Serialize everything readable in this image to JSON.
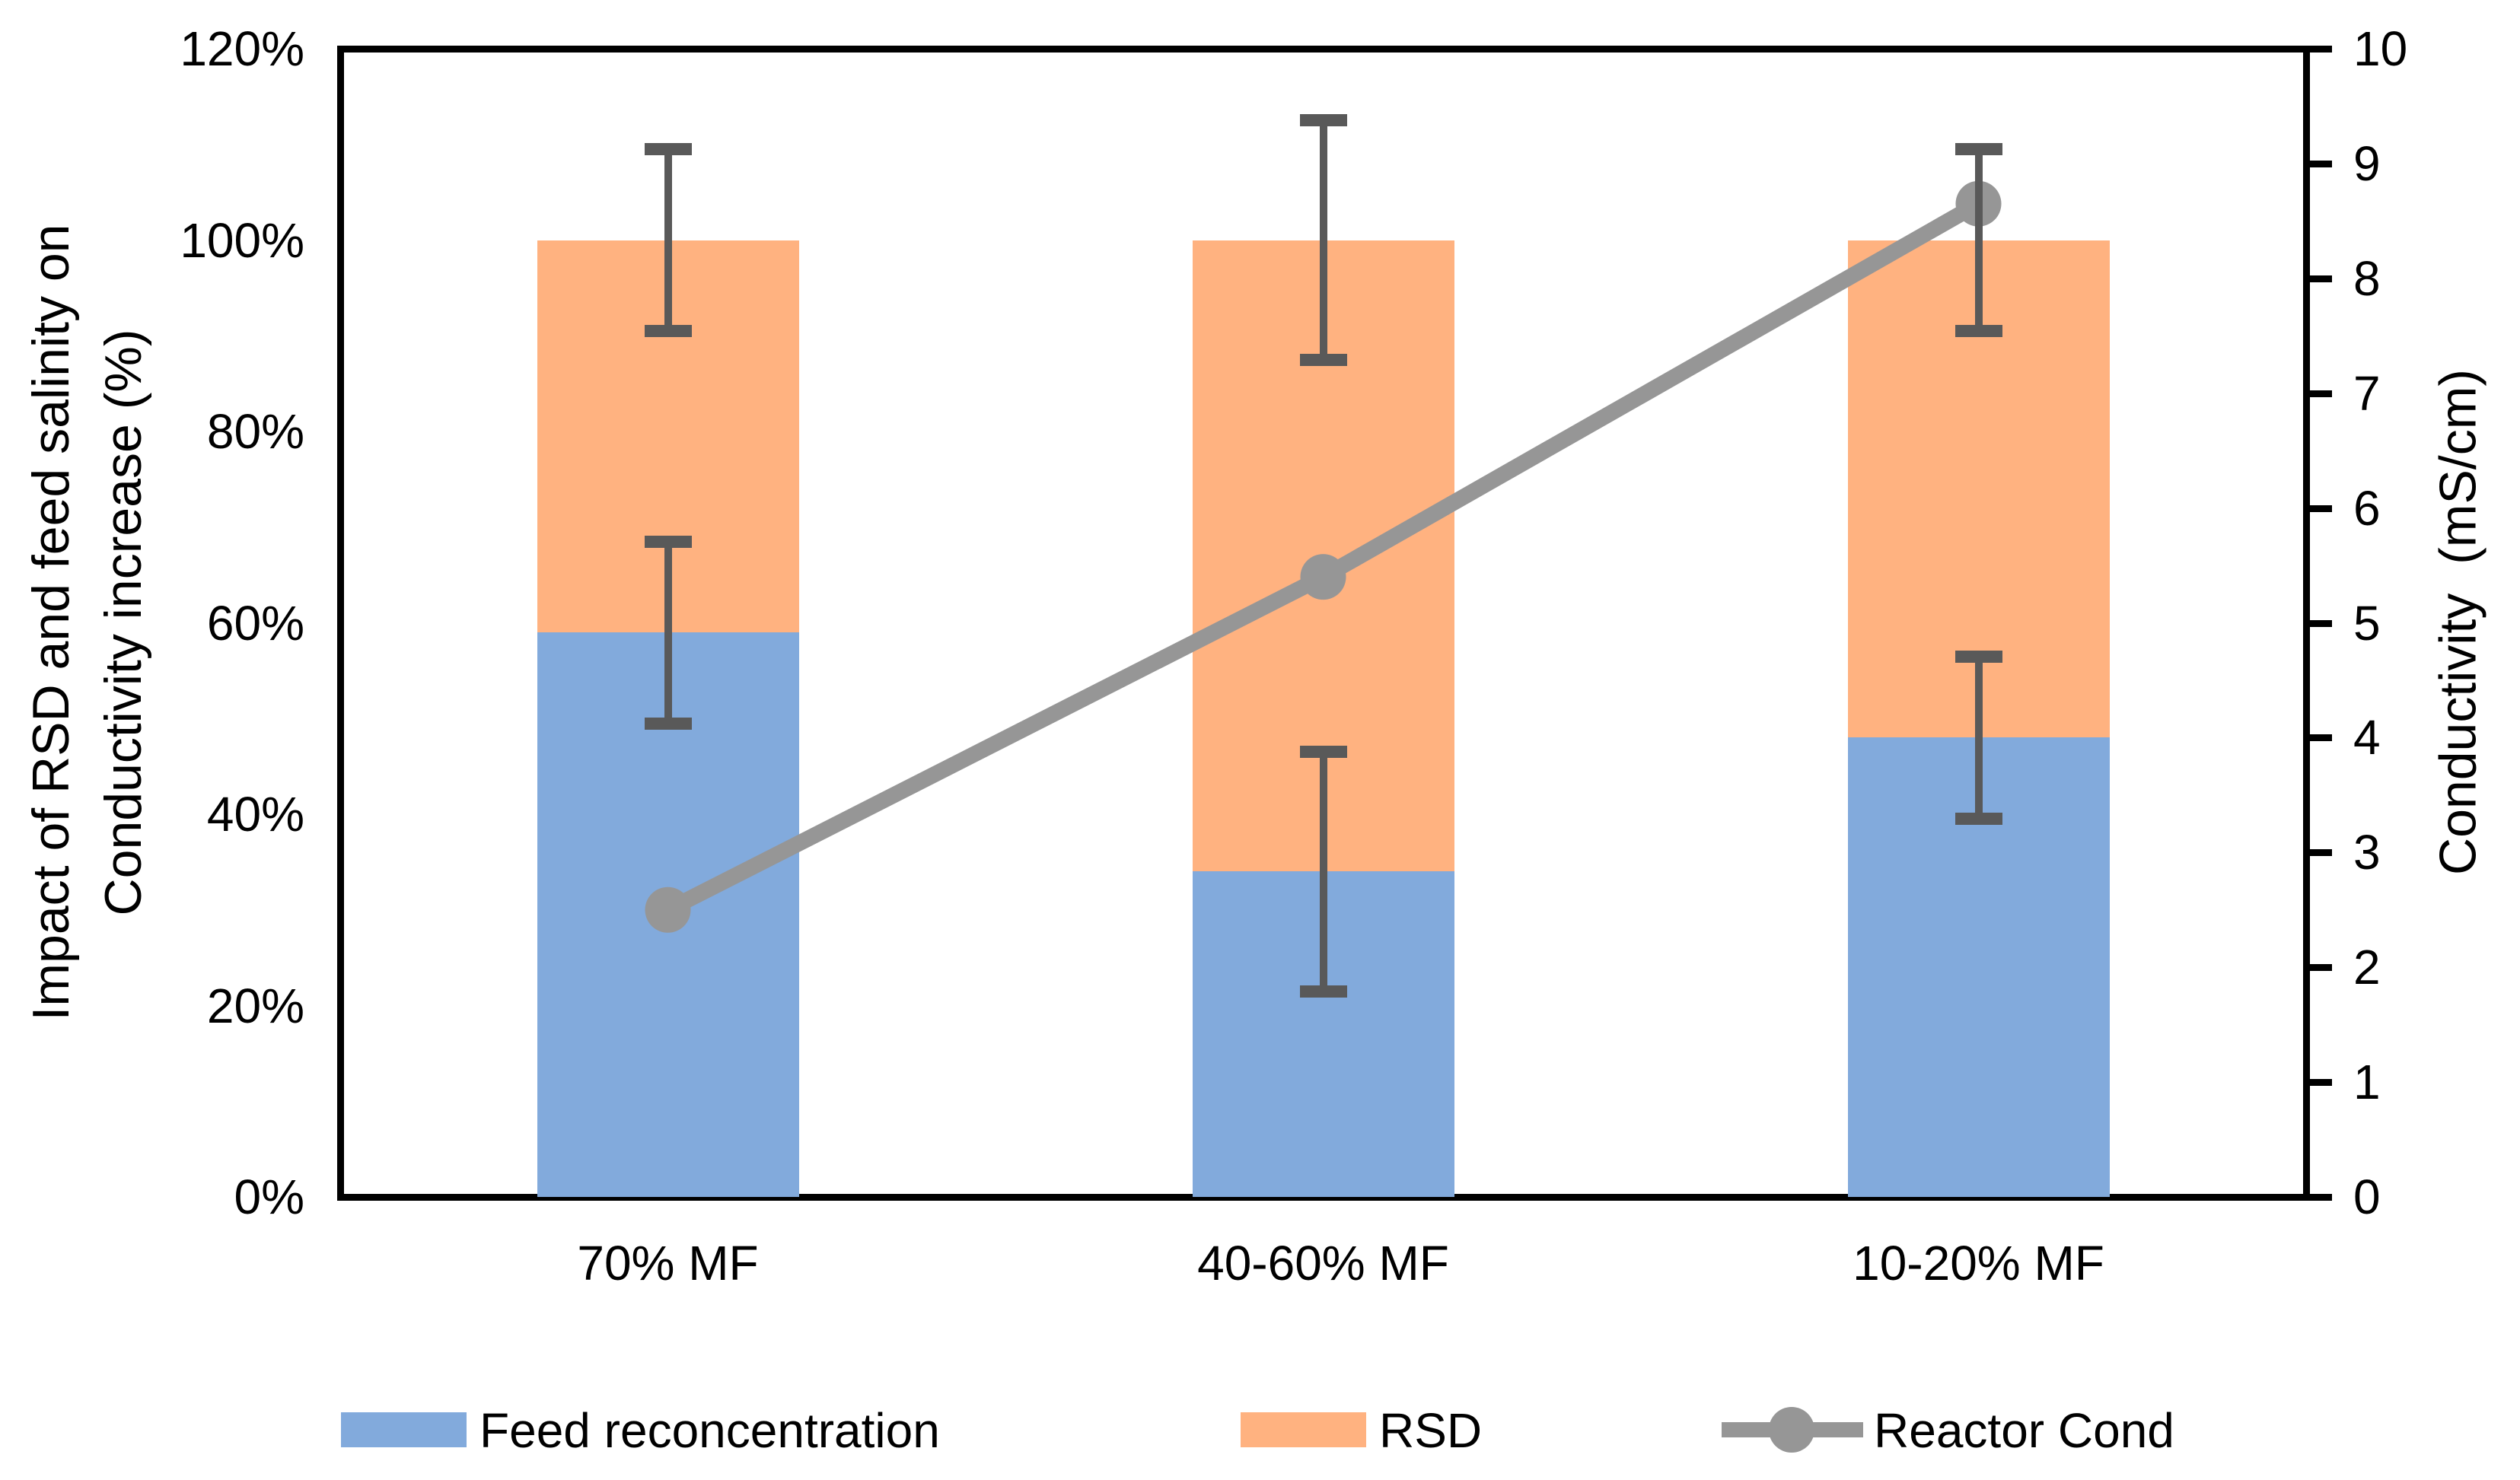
{
  "chart_data": {
    "type": "bar",
    "subtype": "stacked-column-with-line",
    "categories": [
      "70% MF",
      "40-60% MF",
      "10-20% MF"
    ],
    "series": [
      {
        "name": "Feed reconcentration",
        "type": "bar",
        "axis": "left",
        "color": "#82AADC",
        "values": [
          59,
          34,
          48
        ],
        "error_plus_minus": [
          9.5,
          12.5,
          8.5
        ]
      },
      {
        "name": "RSD",
        "type": "bar",
        "axis": "left",
        "color": "#FFB280",
        "values": [
          41,
          66,
          52
        ],
        "stack_totals": [
          100,
          100,
          100
        ],
        "total_error_plus_minus": [
          9.5,
          12.5,
          9.5
        ]
      },
      {
        "name": "Reactor Cond",
        "type": "line",
        "axis": "right",
        "color": "#969696",
        "values": [
          2.5,
          5.4,
          8.65
        ]
      }
    ],
    "left_axis": {
      "title_line1": "Impact of RSD and feed salinity on",
      "title_line2": "Conductivity increase (%)",
      "min": 0,
      "max": 120,
      "step": 20,
      "ticks": [
        "0%",
        "20%",
        "40%",
        "60%",
        "80%",
        "100%",
        "120%"
      ]
    },
    "right_axis": {
      "title": "Conductivity  (mS/cm)",
      "min": 0,
      "max": 10,
      "step": 1,
      "ticks": [
        "0",
        "1",
        "2",
        "3",
        "4",
        "5",
        "6",
        "7",
        "8",
        "9",
        "10"
      ]
    },
    "legend": {
      "position": "bottom",
      "entries": [
        "Feed reconcentration",
        "RSD",
        "Reactor Cond"
      ]
    },
    "grid": "off",
    "colors": {
      "bar_blue": "#82AADC",
      "bar_orange": "#FFB280",
      "line_gray": "#969696",
      "error_bar_gray": "#595959",
      "axis_black": "#000000"
    }
  }
}
